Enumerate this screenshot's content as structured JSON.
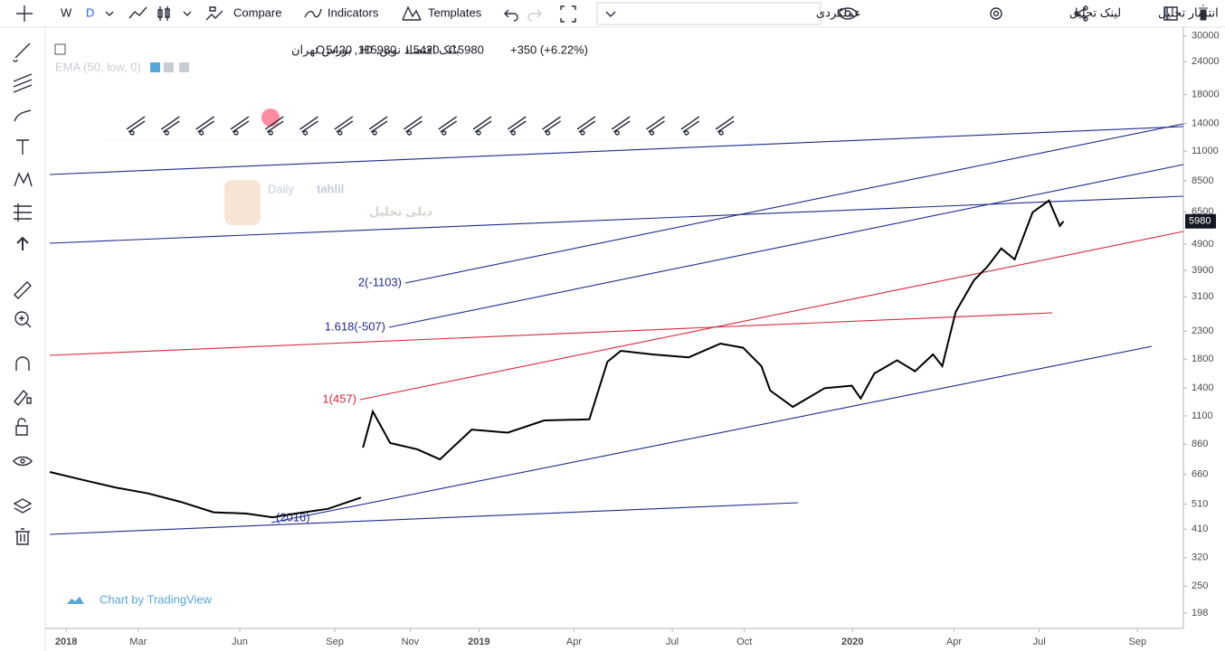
{
  "toolbar": {
    "interval_w": "W",
    "interval_d": "D",
    "compare": "Compare",
    "indicators": "Indicators",
    "templates": "Templates",
    "layout_select": "عملکردی",
    "link": "لینک تحلیل",
    "publish": "انتشار تحلیل"
  },
  "legend": {
    "symbol": "بانک اقتصاد نوین, 1D, بورس تهران",
    "ohlc": [
      {
        "label": "O",
        "value": 5420
      },
      {
        "label": "H",
        "value": 5980
      },
      {
        "label": "L",
        "value": 5420
      },
      {
        "label": "C",
        "value": 5980
      }
    ],
    "change": "+350 (+6.22%)",
    "indicator": "EMA (50, low, 0)"
  },
  "watermark": {
    "latin_a": "Daily",
    "latin_b": "tahlil",
    "persian": "دیلی تحلیل"
  },
  "fib_labels": [
    "2(-1103)",
    "1.618(-507)",
    "1(457)",
    "(2016)"
  ],
  "footer": "Chart by TradingView",
  "chart": {
    "type": "line",
    "color": "#000000",
    "log_scale": true,
    "ylim": [
      173,
      32400
    ],
    "xlim": [
      -0.5,
      34.1
    ],
    "yticks": [
      30000,
      24000,
      18000,
      14000,
      11000,
      8500,
      6500,
      4900,
      3900,
      3100,
      2300,
      1800,
      1400,
      1100,
      860,
      660,
      510,
      410,
      320,
      250,
      198
    ],
    "xticks": [
      {
        "value": 0,
        "label": "2018"
      },
      {
        "value": 2.2,
        "label": "Mar"
      },
      {
        "value": 5.3,
        "label": "Jun"
      },
      {
        "value": 8.2,
        "label": "Sep"
      },
      {
        "value": 10.5,
        "label": "Nov"
      },
      {
        "value": 12.6,
        "label": "2019"
      },
      {
        "value": 15.5,
        "label": "Apr"
      },
      {
        "value": 18.5,
        "label": "Jul"
      },
      {
        "value": 20.7,
        "label": "Oct"
      },
      {
        "value": 24,
        "label": "2020"
      },
      {
        "value": 27.1,
        "label": "Apr"
      },
      {
        "value": 29.7,
        "label": "Jul"
      },
      {
        "value": 32.7,
        "label": "Sep"
      }
    ],
    "x": [
      -0.5,
      0.5,
      1.5,
      2.5,
      3.5,
      4.5,
      5.5,
      6.3,
      7.0,
      8.0,
      9.0,
      9.03,
      9.06,
      9.36,
      9.89,
      10.72,
      11.41,
      12.38,
      13.48,
      14.59,
      15.97,
      16.52,
      16.93,
      17.9,
      19.0,
      19.97,
      20.66,
      21.22,
      21.49,
      22.18,
      23.15,
      23.98,
      24.25,
      24.67,
      25.36,
      25.91,
      26.46,
      26.74,
      27.15,
      27.71,
      28.12,
      28.54,
      28.95,
      29.5,
      30.0,
      30.33,
      30.44
    ],
    "values": [
      675,
      630,
      590,
      560,
      520,
      475,
      470,
      455,
      470,
      490,
      540,
      null,
      834,
      1142,
      868,
      822,
      753,
      976,
      950,
      1057,
      1067,
      1761,
      1937,
      1877,
      1830,
      2063,
      1990,
      1696,
      1371,
      1189,
      1400,
      1430,
      1280,
      1591,
      1784,
      1622,
      1877,
      1696,
      2717,
      3580,
      4031,
      4719,
      4291,
      6469,
      7165,
      5745,
      5980
    ],
    "last_price": 5980
  }
}
